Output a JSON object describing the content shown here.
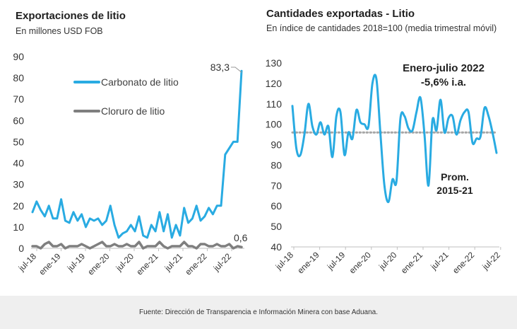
{
  "footer": {
    "source": "Fuente: Dirección de Transparencia e Información Minera con base Aduana."
  },
  "chart_data": [
    {
      "type": "line",
      "title": "Exportaciones de litio",
      "subtitle": "En millones USD FOB",
      "ylim": [
        0,
        90
      ],
      "yticks": [
        0,
        10,
        20,
        30,
        40,
        50,
        60,
        70,
        80,
        90
      ],
      "xticks": [
        "jul-18",
        "ene-19",
        "jul-19",
        "ene-20",
        "jul-20",
        "ene-21",
        "jul-21",
        "ene-22",
        "jul-22"
      ],
      "legend": [
        "Carbonato de litio",
        "Cloruro de litio"
      ],
      "annotations": [
        "83,3",
        "0,6"
      ],
      "series": [
        {
          "name": "Carbonato de litio",
          "color": "#29abe2",
          "values": [
            17,
            22,
            18,
            15,
            20,
            14,
            14,
            23,
            13,
            12,
            17,
            13,
            16,
            10,
            14,
            13,
            14,
            11,
            13,
            20,
            11,
            5,
            7,
            8,
            11,
            8,
            15,
            6,
            5,
            11,
            8,
            17,
            8,
            16,
            5,
            11,
            6,
            19,
            12,
            14,
            20,
            13,
            15,
            19,
            16,
            20,
            20,
            44,
            47,
            50,
            50,
            83.3
          ]
        },
        {
          "name": "Cloruro de litio",
          "color": "#7f7f7f",
          "values": [
            1,
            1,
            0,
            2,
            3,
            1,
            1,
            2,
            0,
            1,
            1,
            1,
            2,
            1,
            0,
            1,
            2,
            3,
            1,
            1,
            2,
            1,
            1,
            2,
            1,
            1,
            3,
            0,
            1,
            1,
            1,
            3,
            1,
            0,
            1,
            1,
            1,
            3,
            1,
            1,
            0,
            2,
            2,
            1,
            1,
            2,
            1,
            1,
            2,
            0,
            1,
            0.6
          ]
        }
      ]
    },
    {
      "type": "line",
      "title": "Cantidades exportadas - Litio",
      "subtitle": "En índice de cantidades 2018=100 (media trimestral móvil)",
      "ylim": [
        40,
        130
      ],
      "yticks": [
        40,
        50,
        60,
        70,
        80,
        90,
        100,
        110,
        120,
        130
      ],
      "xticks": [
        "jul-18",
        "ene-19",
        "jul-19",
        "ene-20",
        "jul-20",
        "ene-21",
        "jul-21",
        "ene-22",
        "jul-22"
      ],
      "annotations": [
        "Enero-julio 2022",
        "-5,6% i.a.",
        "Prom.",
        "2015-21"
      ],
      "average": 96,
      "series": [
        {
          "name": "Índice de cantidades",
          "color": "#29abe2",
          "values": [
            109,
            88,
            85,
            95,
            110,
            99,
            95,
            101,
            95,
            99,
            84,
            104,
            106,
            85,
            96,
            93,
            107,
            101,
            100,
            99,
            120,
            122,
            95,
            70,
            62,
            73,
            72,
            103,
            104,
            98,
            97,
            106,
            113,
            95,
            70,
            102,
            97,
            112,
            96,
            103,
            104,
            95,
            102,
            106,
            106,
            91,
            93,
            94,
            108,
            104,
            96,
            86
          ]
        },
        {
          "name": "Prom. 2015-21",
          "color": "#a6a6a6",
          "values": [
            96,
            96
          ]
        }
      ]
    }
  ]
}
